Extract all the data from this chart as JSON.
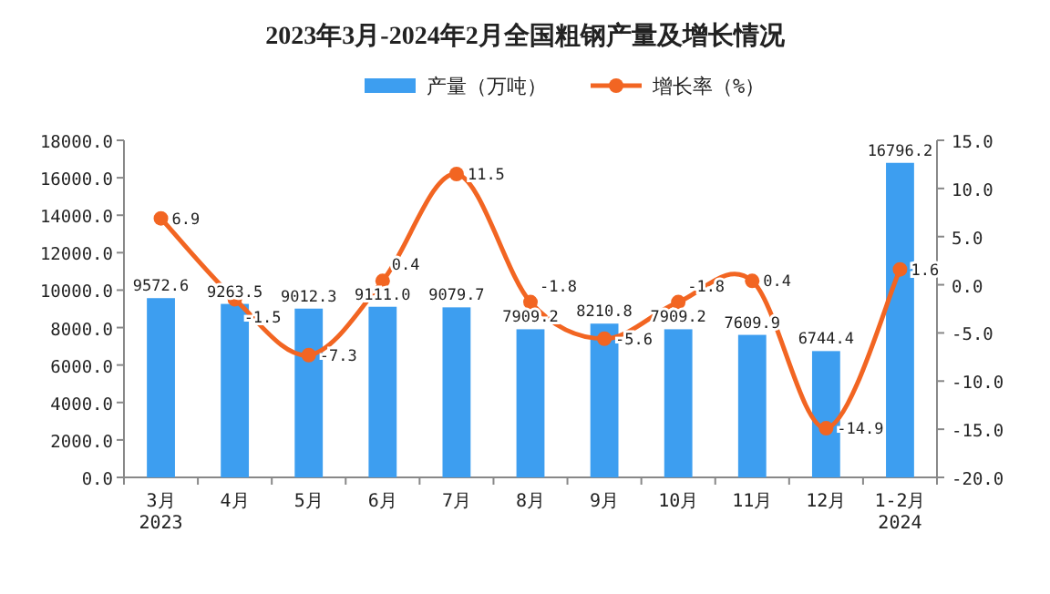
{
  "chart_data": {
    "type": "bar",
    "title": "2023年3月-2024年2月全国粗钢产量及增长情况",
    "categories": [
      "3月\n2023",
      "4月",
      "5月",
      "6月",
      "7月",
      "8月",
      "9月",
      "10月",
      "11月",
      "12月",
      "1-2月\n2024"
    ],
    "series": [
      {
        "name": "产量（万吨）",
        "color": "#3d9ef0",
        "values": [
          9572.6,
          9263.5,
          9012.3,
          9111.0,
          9079.7,
          7909.2,
          8210.8,
          7909.2,
          7609.9,
          6744.4,
          16796.2
        ],
        "value_labels": [
          "9572.6",
          "9263.5",
          "9012.3",
          "9111.0",
          "9079.7",
          "7909.2",
          "8210.8",
          "7909.2",
          "7609.9",
          "6744.4",
          "16796.2"
        ]
      },
      {
        "name": "增长率（%）",
        "type": "line",
        "axis": "y2",
        "color": "#f26522",
        "marker": "circle",
        "values": [
          6.9,
          -1.5,
          -7.3,
          0.4,
          11.5,
          -1.8,
          -5.6,
          -1.8,
          0.4,
          -14.9,
          1.6
        ],
        "value_labels": [
          "6.9",
          "-1.5",
          "-7.3",
          "0.4",
          "11.5",
          "-1.8",
          "-5.6",
          "-1.8",
          "0.4",
          "-14.9",
          "1.6"
        ]
      }
    ],
    "ylim": [
      0,
      18000
    ],
    "yticks": [
      {
        "value": 0,
        "label": "0.0"
      },
      {
        "value": 2000,
        "label": "2000.0"
      },
      {
        "value": 4000,
        "label": "4000.0"
      },
      {
        "value": 6000,
        "label": "6000.0"
      },
      {
        "value": 8000,
        "label": "8000.0"
      },
      {
        "value": 10000,
        "label": "10000.0"
      },
      {
        "value": 12000,
        "label": "12000.0"
      },
      {
        "value": 14000,
        "label": "14000.0"
      },
      {
        "value": 16000,
        "label": "16000.0"
      },
      {
        "value": 18000,
        "label": "18000.0"
      }
    ],
    "y2lim": [
      -20,
      15
    ],
    "y2ticks": [
      {
        "value": -20,
        "label": "-20.0"
      },
      {
        "value": -15,
        "label": "-15.0"
      },
      {
        "value": -10,
        "label": "-10.0"
      },
      {
        "value": -5,
        "label": "-5.0"
      },
      {
        "value": 0,
        "label": "0.0"
      },
      {
        "value": 5,
        "label": "5.0"
      },
      {
        "value": 10,
        "label": "10.0"
      },
      {
        "value": 15,
        "label": "15.0"
      }
    ],
    "legend": "top",
    "grid": false
  }
}
